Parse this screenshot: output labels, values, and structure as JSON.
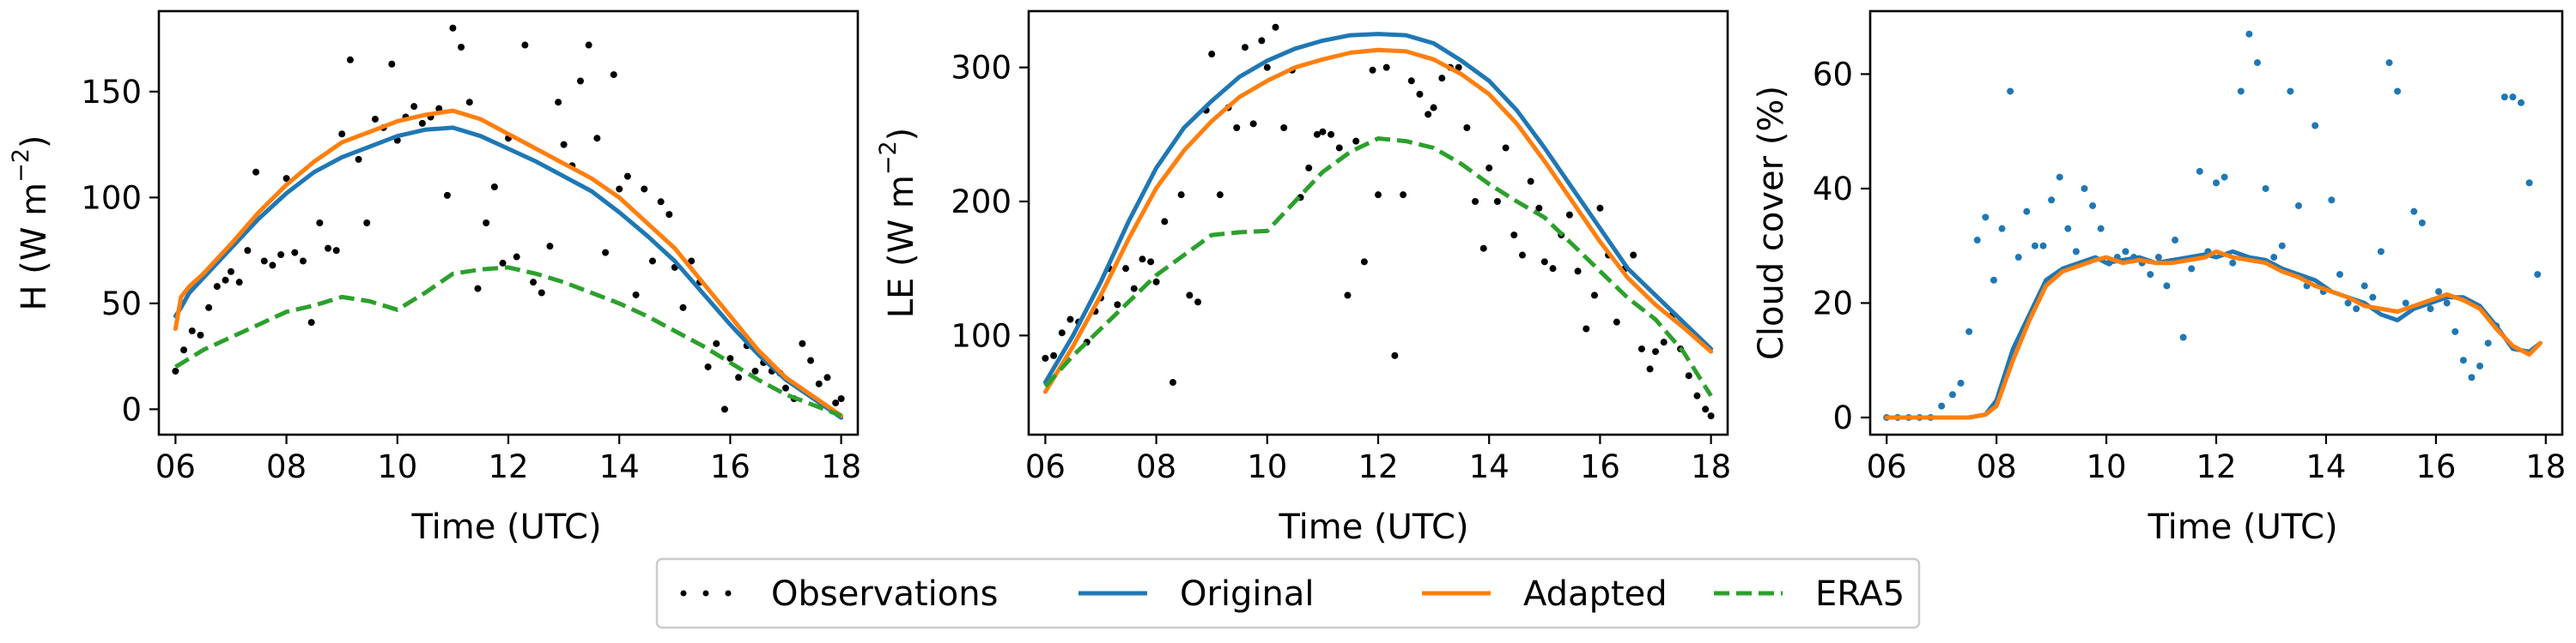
{
  "colors": {
    "observations": "#000000",
    "original": "#1f77b4",
    "adapted": "#ff7f0e",
    "era5": "#2ca02c"
  },
  "legend": {
    "placement": "bottom-center",
    "observations": "Observations",
    "original": "Original",
    "adapted": "Adapted",
    "era5": "ERA5"
  },
  "chart_data": [
    {
      "type": "line",
      "panel": "H",
      "xlabel": "Time (UTC)",
      "ylabel_main": "H (W m",
      "ylabel_exp": "−2",
      "ylabel_end": ")",
      "xlim": [
        5.7,
        18.3
      ],
      "ylim": [
        -12,
        188
      ],
      "xticks": [
        6,
        8,
        10,
        12,
        14,
        16,
        18
      ],
      "xticklabels": [
        "06",
        "08",
        "10",
        "12",
        "14",
        "16",
        "18"
      ],
      "yticks": [
        0,
        50,
        100,
        150
      ],
      "yticklabels": [
        "0",
        "50",
        "100",
        "150"
      ],
      "series": [
        {
          "name": "Original",
          "style": "solid",
          "x": [
            6.0,
            6.1,
            6.25,
            6.5,
            7.0,
            7.5,
            8.0,
            8.5,
            9.0,
            9.5,
            10.0,
            10.5,
            11.0,
            11.5,
            12.0,
            12.5,
            13.0,
            13.5,
            14.0,
            14.5,
            15.0,
            15.5,
            16.0,
            16.5,
            17.0,
            17.5,
            18.0
          ],
          "y": [
            44,
            48,
            55,
            62,
            76,
            90,
            102,
            112,
            119,
            124,
            129,
            132,
            133,
            129,
            123,
            117,
            110,
            103,
            93,
            82,
            70,
            55,
            40,
            26,
            14,
            5,
            -4
          ]
        },
        {
          "name": "Adapted",
          "style": "solid",
          "x": [
            6.0,
            6.1,
            6.25,
            6.5,
            7.0,
            7.5,
            8.0,
            8.5,
            9.0,
            9.5,
            10.0,
            10.5,
            11.0,
            11.5,
            12.0,
            12.5,
            13.0,
            13.5,
            14.0,
            14.5,
            15.0,
            15.5,
            16.0,
            16.5,
            17.0,
            17.5,
            18.0
          ],
          "y": [
            38,
            53,
            58,
            64,
            78,
            93,
            106,
            117,
            126,
            131,
            136,
            139,
            141,
            137,
            130,
            123,
            116,
            109,
            100,
            88,
            76,
            60,
            44,
            28,
            15,
            6,
            -3
          ]
        },
        {
          "name": "ERA5",
          "style": "dashed",
          "x": [
            6.0,
            6.5,
            7.0,
            7.5,
            8.0,
            8.5,
            9.0,
            9.5,
            10.0,
            10.5,
            11.0,
            11.5,
            12.0,
            12.5,
            13.0,
            13.5,
            14.0,
            14.5,
            15.0,
            15.5,
            16.0,
            16.5,
            17.0,
            17.5,
            18.0
          ],
          "y": [
            20,
            28,
            34,
            40,
            46,
            49,
            53,
            51,
            47,
            55,
            64,
            66,
            67,
            64,
            60,
            55,
            50,
            44,
            37,
            30,
            22,
            14,
            7,
            2,
            -3
          ]
        }
      ],
      "observations": {
        "name": "Observations",
        "x": [
          6.0,
          6.15,
          6.3,
          6.45,
          6.6,
          6.75,
          6.9,
          7.0,
          7.15,
          7.3,
          7.45,
          7.6,
          7.75,
          7.9,
          8.0,
          8.15,
          8.3,
          8.45,
          8.6,
          8.75,
          8.9,
          9.0,
          9.15,
          9.3,
          9.45,
          9.6,
          9.75,
          9.9,
          10.0,
          10.15,
          10.3,
          10.45,
          10.6,
          10.75,
          10.9,
          11.0,
          11.15,
          11.3,
          11.45,
          11.6,
          11.75,
          11.9,
          12.0,
          12.15,
          12.3,
          12.45,
          12.6,
          12.75,
          12.9,
          13.0,
          13.15,
          13.3,
          13.45,
          13.6,
          13.75,
          13.9,
          14.0,
          14.15,
          14.3,
          14.45,
          14.6,
          14.75,
          14.9,
          15.0,
          15.15,
          15.3,
          15.45,
          15.6,
          15.75,
          15.9,
          16.0,
          16.15,
          16.3,
          16.45,
          16.6,
          16.75,
          16.9,
          17.0,
          17.15,
          17.3,
          17.45,
          17.6,
          17.75,
          17.9,
          18.0
        ],
        "y": [
          18,
          28,
          37,
          35,
          48,
          58,
          61,
          65,
          60,
          75,
          112,
          70,
          68,
          73,
          109,
          74,
          70,
          41,
          88,
          76,
          75,
          130,
          165,
          118,
          88,
          137,
          133,
          163,
          127,
          138,
          143,
          135,
          138,
          142,
          101,
          180,
          171,
          145,
          57,
          88,
          105,
          69,
          128,
          72,
          172,
          60,
          55,
          77,
          145,
          125,
          115,
          155,
          172,
          128,
          74,
          158,
          104,
          110,
          54,
          104,
          70,
          98,
          92,
          67,
          48,
          70,
          60,
          20,
          31,
          0,
          24,
          15,
          30,
          18,
          22,
          18,
          17,
          10,
          5,
          31,
          23,
          12,
          15,
          3,
          5
        ]
      }
    },
    {
      "type": "line",
      "panel": "LE",
      "xlabel": "Time (UTC)",
      "ylabel_main": "LE (W m",
      "ylabel_exp": "−2",
      "ylabel_end": ")",
      "xlim": [
        5.7,
        18.3
      ],
      "ylim": [
        26,
        342
      ],
      "xticks": [
        6,
        8,
        10,
        12,
        14,
        16,
        18
      ],
      "xticklabels": [
        "06",
        "08",
        "10",
        "12",
        "14",
        "16",
        "18"
      ],
      "yticks": [
        100,
        200,
        300
      ],
      "yticklabels": [
        "100",
        "200",
        "300"
      ],
      "series": [
        {
          "name": "Original",
          "style": "solid",
          "x": [
            6.0,
            6.5,
            7.0,
            7.5,
            8.0,
            8.5,
            9.0,
            9.5,
            10.0,
            10.5,
            11.0,
            11.5,
            12.0,
            12.5,
            13.0,
            13.5,
            14.0,
            14.5,
            15.0,
            15.5,
            16.0,
            16.5,
            17.0,
            17.5,
            18.0
          ],
          "y": [
            65,
            100,
            140,
            185,
            225,
            255,
            275,
            293,
            305,
            314,
            320,
            324,
            325,
            324,
            318,
            305,
            290,
            268,
            240,
            210,
            180,
            150,
            130,
            110,
            90
          ]
        },
        {
          "name": "Adapted",
          "style": "solid",
          "x": [
            6.0,
            6.5,
            7.0,
            7.5,
            8.0,
            8.5,
            9.0,
            9.5,
            10.0,
            10.5,
            11.0,
            11.5,
            12.0,
            12.5,
            13.0,
            13.5,
            14.0,
            14.5,
            15.0,
            15.5,
            16.0,
            16.5,
            17.0,
            17.5,
            18.0
          ],
          "y": [
            58,
            92,
            130,
            172,
            210,
            238,
            260,
            278,
            290,
            300,
            306,
            311,
            313,
            312,
            306,
            295,
            280,
            258,
            230,
            200,
            170,
            143,
            123,
            106,
            88
          ]
        },
        {
          "name": "ERA5",
          "style": "dashed",
          "x": [
            6.0,
            6.5,
            7.0,
            7.5,
            8.0,
            8.5,
            9.0,
            9.5,
            10.0,
            10.5,
            11.0,
            11.5,
            12.0,
            12.5,
            13.0,
            13.5,
            14.0,
            14.5,
            15.0,
            15.5,
            16.0,
            16.5,
            17.0,
            17.5,
            18.0
          ],
          "y": [
            62,
            85,
            105,
            125,
            145,
            160,
            175,
            177,
            178,
            200,
            222,
            237,
            247,
            245,
            240,
            228,
            213,
            200,
            188,
            168,
            148,
            128,
            112,
            88,
            55
          ]
        }
      ],
      "observations": {
        "name": "Observations",
        "x": [
          6.0,
          6.15,
          6.3,
          6.45,
          6.6,
          6.75,
          6.9,
          7.0,
          7.15,
          7.3,
          7.45,
          7.6,
          7.75,
          7.9,
          8.0,
          8.15,
          8.3,
          8.45,
          8.6,
          8.75,
          8.9,
          9.0,
          9.15,
          9.3,
          9.45,
          9.6,
          9.75,
          9.9,
          10.0,
          10.15,
          10.3,
          10.45,
          10.6,
          10.75,
          10.9,
          11.0,
          11.15,
          11.3,
          11.45,
          11.6,
          11.75,
          11.9,
          12.0,
          12.15,
          12.3,
          12.45,
          12.6,
          12.75,
          12.9,
          13.0,
          13.15,
          13.3,
          13.45,
          13.6,
          13.75,
          13.9,
          14.0,
          14.15,
          14.3,
          14.45,
          14.6,
          14.75,
          14.9,
          15.0,
          15.15,
          15.3,
          15.45,
          15.6,
          15.75,
          15.9,
          16.0,
          16.15,
          16.3,
          16.45,
          16.6,
          16.75,
          16.9,
          17.0,
          17.15,
          17.3,
          17.45,
          17.6,
          17.75,
          17.9,
          18.0
        ],
        "y": [
          83,
          85,
          102,
          112,
          110,
          95,
          118,
          128,
          150,
          123,
          150,
          135,
          157,
          155,
          140,
          185,
          65,
          205,
          130,
          125,
          268,
          310,
          205,
          270,
          255,
          315,
          258,
          320,
          300,
          330,
          255,
          298,
          203,
          225,
          250,
          252,
          250,
          240,
          130,
          245,
          155,
          298,
          205,
          300,
          85,
          205,
          290,
          280,
          265,
          270,
          292,
          300,
          300,
          255,
          200,
          165,
          225,
          200,
          240,
          175,
          160,
          215,
          195,
          155,
          150,
          175,
          190,
          148,
          105,
          130,
          195,
          160,
          110,
          150,
          160,
          90,
          75,
          88,
          95,
          115,
          90,
          70,
          55,
          45,
          40
        ]
      }
    },
    {
      "type": "line",
      "panel": "Cloud cover",
      "xlabel": "Time (UTC)",
      "ylabel_main": "Cloud cover (%)",
      "ylabel_exp": "",
      "ylabel_end": "",
      "xlim": [
        5.7,
        18.3
      ],
      "ylim": [
        -3,
        71
      ],
      "xticks": [
        6,
        8,
        10,
        12,
        14,
        16,
        18
      ],
      "xticklabels": [
        "06",
        "08",
        "10",
        "12",
        "14",
        "16",
        "18"
      ],
      "yticks": [
        0,
        20,
        40,
        60
      ],
      "yticklabels": [
        "0",
        "20",
        "40",
        "60"
      ],
      "series": [
        {
          "name": "Original",
          "style": "solid",
          "x": [
            6.0,
            6.5,
            7.0,
            7.5,
            7.8,
            8.0,
            8.3,
            8.6,
            8.9,
            9.2,
            9.5,
            9.8,
            10.0,
            10.3,
            10.6,
            10.9,
            11.2,
            11.5,
            11.8,
            12.0,
            12.3,
            12.6,
            12.9,
            13.2,
            13.5,
            13.8,
            14.1,
            14.4,
            14.7,
            15.0,
            15.3,
            15.6,
            15.9,
            16.2,
            16.5,
            16.8,
            17.1,
            17.4,
            17.7,
            17.9
          ],
          "y": [
            0,
            0,
            0,
            0,
            0.5,
            3,
            12,
            18,
            24,
            26,
            27,
            28,
            27,
            27.5,
            28,
            27,
            27.5,
            28,
            28.5,
            28,
            29,
            28,
            27.5,
            26,
            25,
            24,
            22,
            21,
            20,
            18,
            17,
            19,
            20,
            21,
            21,
            19.5,
            16,
            12,
            11.5,
            13
          ]
        },
        {
          "name": "Adapted",
          "style": "solid",
          "x": [
            6.0,
            6.5,
            7.0,
            7.5,
            7.8,
            8.0,
            8.3,
            8.6,
            8.9,
            9.2,
            9.5,
            9.8,
            10.0,
            10.3,
            10.6,
            10.9,
            11.2,
            11.5,
            11.8,
            12.0,
            12.3,
            12.6,
            12.9,
            13.2,
            13.5,
            13.8,
            14.1,
            14.4,
            14.7,
            15.0,
            15.3,
            15.6,
            15.9,
            16.2,
            16.5,
            16.8,
            17.1,
            17.4,
            17.7,
            17.9
          ],
          "y": [
            0,
            0,
            0,
            0,
            0.5,
            2,
            10,
            17,
            23,
            25.5,
            26.5,
            27.5,
            28,
            27,
            27.5,
            27,
            27,
            27.5,
            28,
            29,
            28,
            27.5,
            27,
            25.5,
            24.5,
            23,
            22,
            21,
            19.5,
            19,
            18.5,
            19.5,
            20.5,
            21.5,
            20.5,
            19,
            15.5,
            12.5,
            11,
            13
          ]
        }
      ],
      "observations": {
        "name": "Observations",
        "x": [
          6.0,
          6.2,
          6.4,
          6.6,
          6.8,
          7.0,
          7.2,
          7.35,
          7.5,
          7.65,
          7.8,
          7.95,
          8.1,
          8.25,
          8.4,
          8.55,
          8.7,
          8.85,
          9.0,
          9.15,
          9.3,
          9.45,
          9.6,
          9.75,
          9.9,
          10.05,
          10.2,
          10.35,
          10.5,
          10.65,
          10.8,
          10.95,
          11.1,
          11.25,
          11.4,
          11.55,
          11.7,
          11.85,
          12.0,
          12.15,
          12.3,
          12.45,
          12.6,
          12.75,
          12.9,
          13.05,
          13.2,
          13.35,
          13.5,
          13.65,
          13.8,
          13.95,
          14.1,
          14.25,
          14.4,
          14.55,
          14.7,
          14.85,
          15.0,
          15.15,
          15.3,
          15.45,
          15.6,
          15.75,
          15.9,
          16.05,
          16.2,
          16.35,
          16.5,
          16.65,
          16.8,
          16.95,
          17.1,
          17.25,
          17.4,
          17.55,
          17.7,
          17.85
        ],
        "y": [
          0,
          0,
          0,
          0,
          0,
          2,
          4,
          6,
          15,
          31,
          35,
          24,
          33,
          57,
          28,
          36,
          30,
          30,
          38,
          42,
          33,
          29,
          40,
          37,
          33,
          27,
          28,
          29,
          28,
          27,
          25,
          28,
          23,
          31,
          14,
          26,
          43,
          29,
          41,
          42,
          27,
          57,
          67,
          62,
          40,
          28,
          30,
          57,
          37,
          23,
          51,
          22,
          38,
          25,
          20,
          19,
          23,
          21,
          29,
          62,
          57,
          20,
          36,
          34,
          19,
          22,
          20,
          15,
          10,
          7,
          9,
          13,
          16,
          56,
          56,
          55,
          41,
          25
        ]
      }
    }
  ]
}
